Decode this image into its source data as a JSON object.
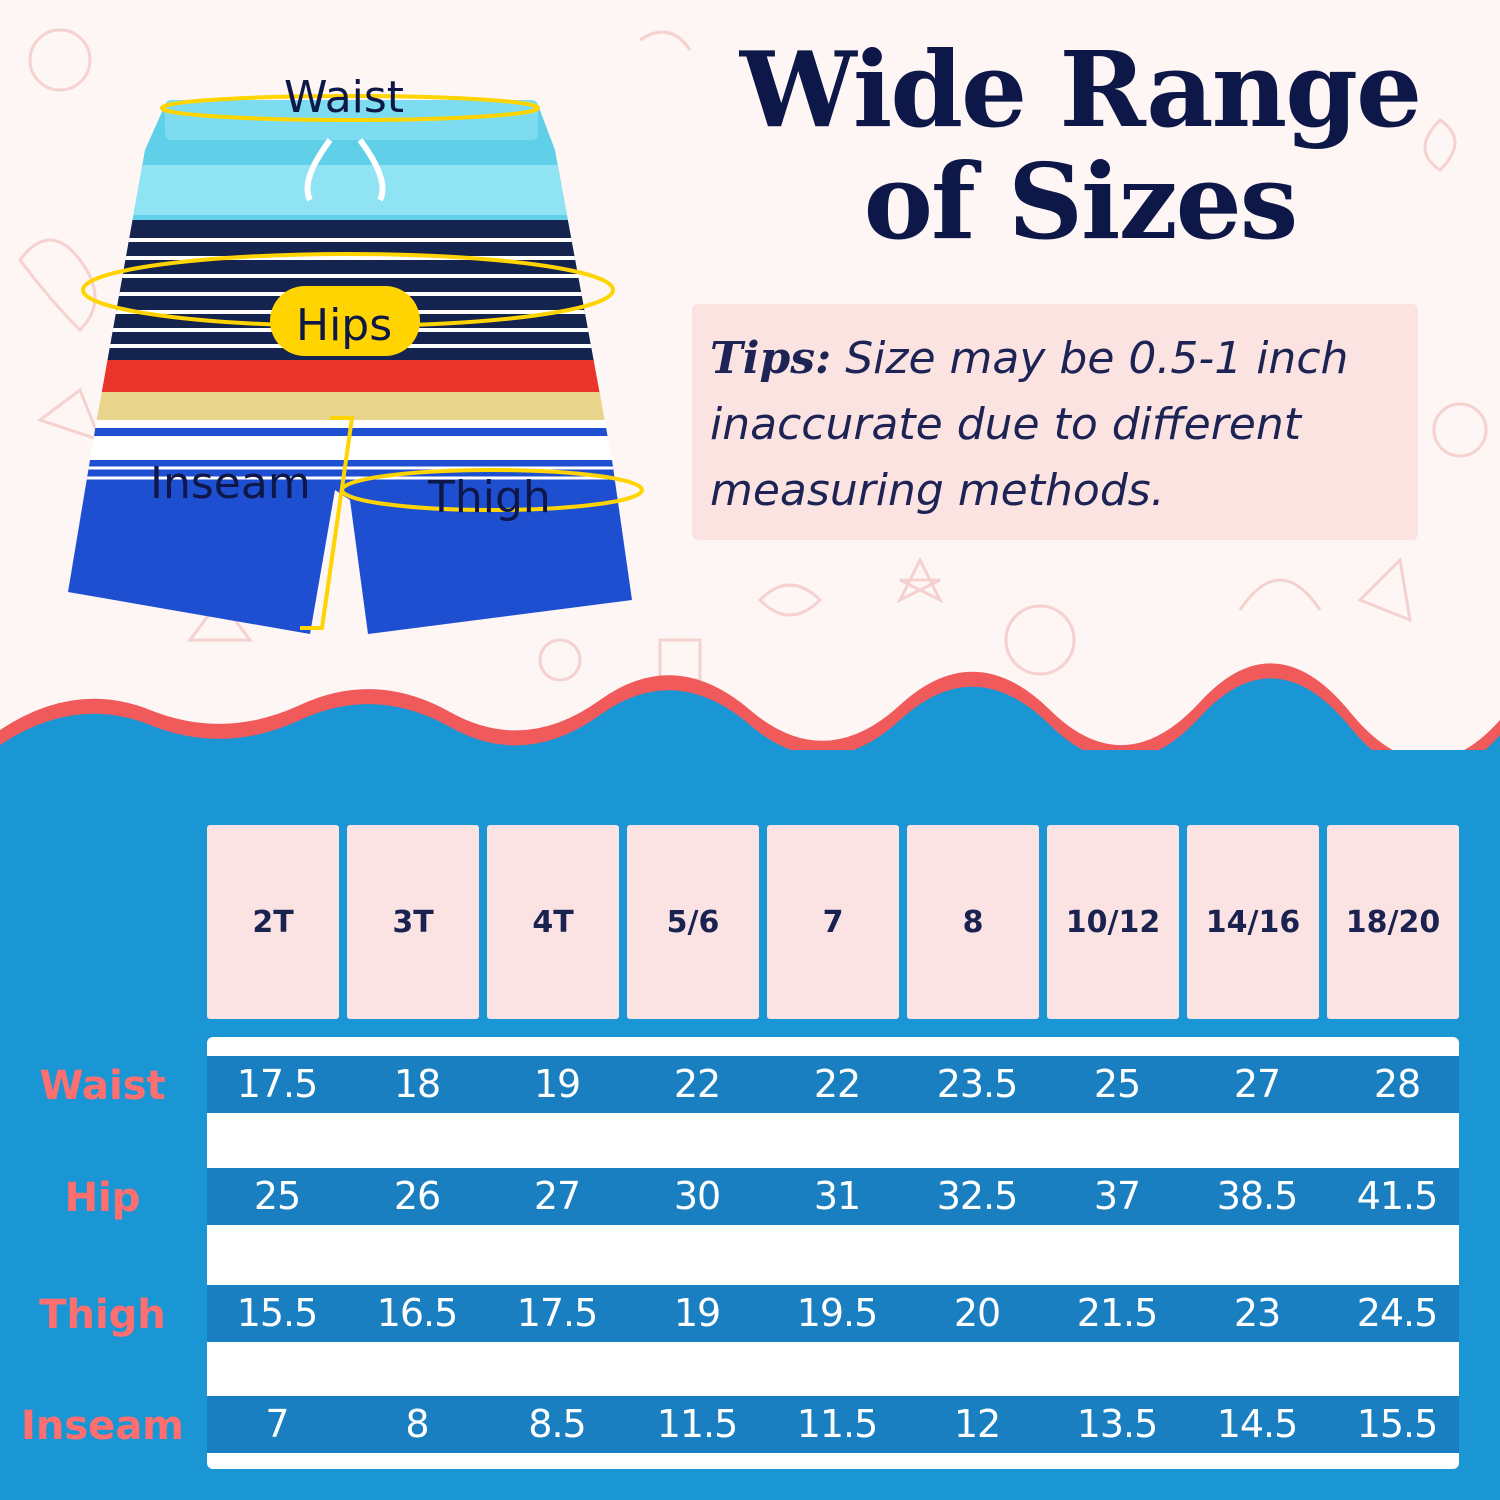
{
  "title": [
    "Wide Range",
    "of Sizes"
  ],
  "tips": {
    "label": "Tips:",
    "text": " Size may be 0.5-1 inch inaccurate due to different measuring methods."
  },
  "illustration": {
    "labels": {
      "waist": "Waist",
      "hips": "Hips",
      "inseam": "Inseam",
      "thigh": "Thigh"
    },
    "colors": {
      "highlight": "#ffd400",
      "aqua": "#5fd0e8",
      "navy": "#15234f",
      "red": "#e8342b",
      "tan": "#e8d48a",
      "royal_blue": "#1f4fd1"
    }
  },
  "size_chart": {
    "sizes": [
      "2T",
      "3T",
      "4T",
      "5/6",
      "7",
      "8",
      "10/12",
      "14/16",
      "18/20"
    ],
    "rows": [
      {
        "label": "Waist",
        "values": [
          "17.5",
          "18",
          "19",
          "22",
          "22",
          "23.5",
          "25",
          "27",
          "28"
        ]
      },
      {
        "label": "Hip",
        "values": [
          "25",
          "26",
          "27",
          "30",
          "31",
          "32.5",
          "37",
          "38.5",
          "41.5"
        ]
      },
      {
        "label": "Thigh",
        "values": [
          "15.5",
          "16.5",
          "17.5",
          "19",
          "19.5",
          "20",
          "21.5",
          "23",
          "24.5"
        ]
      },
      {
        "label": "Inseam",
        "values": [
          "7",
          "8",
          "8.5",
          "11.5",
          "11.5",
          "12",
          "13.5",
          "14.5",
          "15.5"
        ]
      }
    ],
    "colors": {
      "header_bg": "#fbe3e3",
      "band_bg": "#1a7fc0",
      "page_blue": "#1b96d4",
      "row_label": "#ff6f6f",
      "wave_edge": "#f05a5a"
    }
  }
}
